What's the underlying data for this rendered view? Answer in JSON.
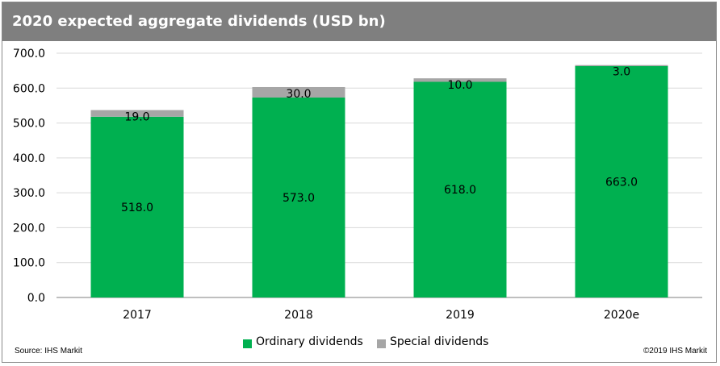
{
  "chart_data": {
    "type": "bar",
    "stacked": true,
    "title": "2020 expected aggregate dividends (USD bn)",
    "categories": [
      "2017",
      "2018",
      "2019",
      "2020e"
    ],
    "series": [
      {
        "name": "Ordinary dividends",
        "values": [
          518.0,
          573.0,
          618.0,
          663.0
        ],
        "color": "#00b050",
        "value_labels": [
          "518.0",
          "573.0",
          "618.0",
          "663.0"
        ]
      },
      {
        "name": "Special dividends",
        "values": [
          19.0,
          30.0,
          10.0,
          3.0
        ],
        "color": "#a6a6a6",
        "value_labels": [
          "19.0",
          "30.0",
          "10.0",
          "3.0"
        ]
      }
    ],
    "ylim": [
      0,
      700
    ],
    "y_ticks": [
      0,
      100,
      200,
      300,
      400,
      500,
      600,
      700
    ],
    "y_tick_labels": [
      "0.0",
      "100.0",
      "200.0",
      "300.0",
      "400.0",
      "500.0",
      "600.0",
      "700.0"
    ],
    "grid": true,
    "legend_position": "bottom-center"
  },
  "footer": {
    "source": "Source: IHS Markit",
    "copyright": "©2019 IHS Markit"
  }
}
